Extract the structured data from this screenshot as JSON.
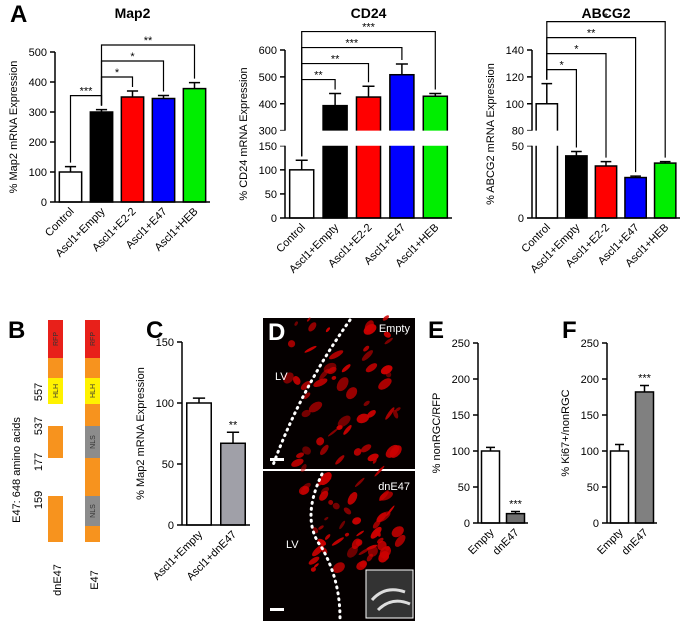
{
  "panel_labels": [
    "A",
    "B",
    "C",
    "D",
    "E",
    "F"
  ],
  "diagram": {
    "title": "E47: 648 amino acids",
    "constructs": [
      {
        "name": "dnE47",
        "domains": [
          "RFP",
          "HLH"
        ]
      },
      {
        "name": "E47",
        "domains": [
          "RFP",
          "HLH",
          "NLS",
          "NLS"
        ]
      }
    ],
    "positions": [
      "557",
      "537",
      "177",
      "159"
    ]
  },
  "images": [
    {
      "condition": "Empty",
      "region": "LV"
    },
    {
      "condition": "dnE47",
      "region": "LV"
    }
  ],
  "chart_data": [
    {
      "type": "bar",
      "title": "Map2",
      "y_label": "% Map2 mRNA Expression",
      "categories": [
        "Control",
        "Ascl1+Empty",
        "Ascl1+E2-2",
        "Ascl1+E47",
        "Ascl1+HEB"
      ],
      "colors": [
        "#ffffff",
        "#000000",
        "#ff0000",
        "#0000ff",
        "#00ee00"
      ],
      "values": [
        100,
        300,
        350,
        345,
        378
      ],
      "errors": [
        18,
        8,
        20,
        10,
        20
      ],
      "ylim": [
        0,
        500
      ],
      "yticks": [
        0,
        100,
        200,
        300,
        400,
        500
      ],
      "significance": [
        {
          "label": "***",
          "between": [
            "Control",
            "Ascl1+Empty"
          ]
        },
        {
          "label": "*",
          "between": [
            "Ascl1+Empty",
            "Ascl1+E2-2"
          ]
        },
        {
          "label": "*",
          "between": [
            "Ascl1+Empty",
            "Ascl1+E47"
          ]
        },
        {
          "label": "**",
          "between": [
            "Ascl1+Empty",
            "Ascl1+HEB"
          ]
        }
      ]
    },
    {
      "type": "bar",
      "title": "CD24",
      "y_label": "% CD24 mRNA Expression",
      "categories": [
        "Control",
        "Ascl1+Empty",
        "Ascl1+E2-2",
        "Ascl1+E47",
        "Ascl1+HEB"
      ],
      "colors": [
        "#ffffff",
        "#000000",
        "#ff0000",
        "#0000ff",
        "#00ee00"
      ],
      "values": [
        100,
        393,
        425,
        508,
        428
      ],
      "errors": [
        20,
        45,
        40,
        40,
        10
      ],
      "ylim": [
        0,
        600
      ],
      "ybreak": [
        150,
        300
      ],
      "yticks": [
        0,
        50,
        100,
        150,
        300,
        400,
        500,
        600
      ],
      "significance": [
        {
          "label": "**",
          "between": [
            "Control",
            "Ascl1+Empty"
          ]
        },
        {
          "label": "**",
          "between": [
            "Control",
            "Ascl1+E2-2"
          ]
        },
        {
          "label": "***",
          "between": [
            "Control",
            "Ascl1+E47"
          ]
        },
        {
          "label": "***",
          "between": [
            "Control",
            "Ascl1+HEB"
          ]
        }
      ]
    },
    {
      "type": "bar",
      "title": "ABCG2",
      "y_label": "% ABCG2 mRNA Expression",
      "categories": [
        "Control",
        "Ascl1+Empty",
        "Ascl1+E2-2",
        "Ascl1+E47",
        "Ascl1+HEB"
      ],
      "colors": [
        "#ffffff",
        "#000000",
        "#ff0000",
        "#0000ff",
        "#00ee00"
      ],
      "values": [
        100,
        43,
        36,
        28,
        38
      ],
      "errors": [
        15,
        3,
        3,
        1,
        1
      ],
      "ylim": [
        0,
        140
      ],
      "ybreak": [
        50,
        80
      ],
      "yticks": [
        0,
        50,
        80,
        100,
        120,
        140
      ],
      "significance": [
        {
          "label": "*",
          "between": [
            "Control",
            "Ascl1+Empty"
          ]
        },
        {
          "label": "*",
          "between": [
            "Control",
            "Ascl1+E2-2"
          ]
        },
        {
          "label": "**",
          "between": [
            "Control",
            "Ascl1+E47"
          ]
        },
        {
          "label": "*",
          "between": [
            "Control",
            "Ascl1+HEB"
          ]
        }
      ]
    },
    {
      "type": "bar",
      "y_label": "% Map2 mRNA Expression",
      "categories": [
        "Ascl1+Empty",
        "Ascl1+dnE47"
      ],
      "colors": [
        "#ffffff",
        "#a0a0a8"
      ],
      "values": [
        100,
        67
      ],
      "errors": [
        4,
        9
      ],
      "ylim": [
        0,
        150
      ],
      "yticks": [
        0,
        50,
        100,
        150
      ],
      "significance": [
        {
          "label": "**",
          "over": "Ascl1+dnE47"
        }
      ]
    },
    {
      "type": "bar",
      "y_label": "% nonRGC/RFP",
      "categories": [
        "Empty",
        "dnE47"
      ],
      "colors": [
        "#ffffff",
        "#707070"
      ],
      "values": [
        100,
        13
      ],
      "errors": [
        5,
        3
      ],
      "ylim": [
        0,
        250
      ],
      "yticks": [
        0,
        50,
        100,
        150,
        200,
        250
      ],
      "significance": [
        {
          "label": "***",
          "over": "dnE47"
        }
      ]
    },
    {
      "type": "bar",
      "y_label": "% Ki67+/nonRGC",
      "categories": [
        "Empty",
        "dnE47"
      ],
      "colors": [
        "#ffffff",
        "#808080"
      ],
      "values": [
        100,
        182
      ],
      "errors": [
        9,
        9
      ],
      "ylim": [
        0,
        250
      ],
      "yticks": [
        0,
        50,
        100,
        150,
        200,
        250
      ],
      "significance": [
        {
          "label": "***",
          "over": "dnE47"
        }
      ]
    }
  ]
}
